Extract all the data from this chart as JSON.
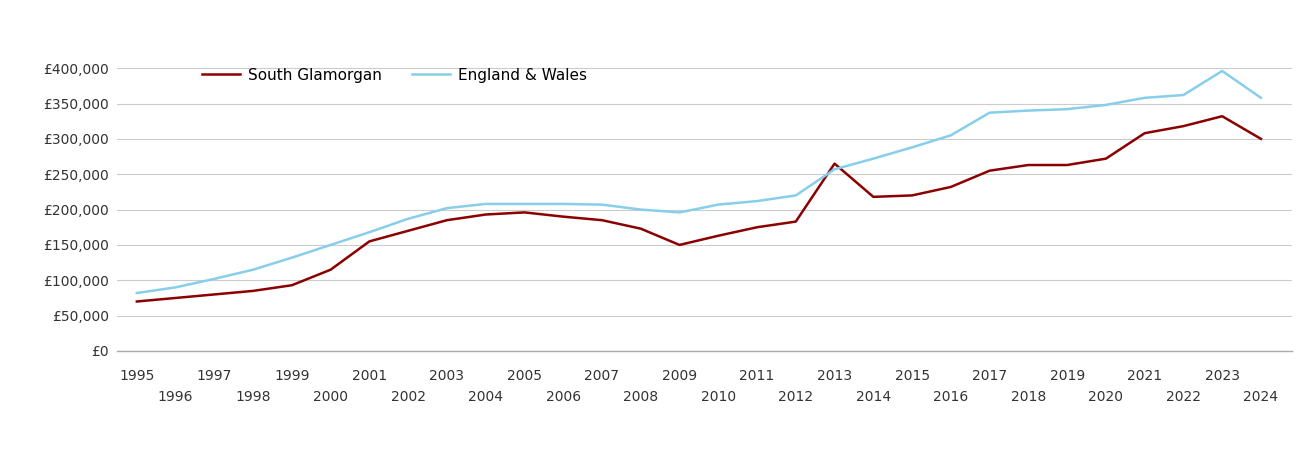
{
  "south_glamorgan_years": [
    1995,
    1996,
    1997,
    1998,
    1999,
    2000,
    2001,
    2002,
    2003,
    2004,
    2005,
    2006,
    2007,
    2008,
    2009,
    2010,
    2011,
    2012,
    2013,
    2014,
    2015,
    2016,
    2017,
    2018,
    2019,
    2020,
    2021,
    2022,
    2023,
    2024
  ],
  "south_glamorgan_values": [
    70000,
    75000,
    80000,
    85000,
    93000,
    115000,
    155000,
    170000,
    185000,
    193000,
    196000,
    190000,
    185000,
    173000,
    150000,
    163000,
    175000,
    183000,
    265000,
    218000,
    220000,
    232000,
    255000,
    263000,
    263000,
    272000,
    308000,
    318000,
    332000,
    300000
  ],
  "england_wales_years": [
    1995,
    1996,
    1997,
    1998,
    1999,
    2000,
    2001,
    2002,
    2003,
    2004,
    2005,
    2006,
    2007,
    2008,
    2009,
    2010,
    2011,
    2012,
    2013,
    2014,
    2015,
    2016,
    2017,
    2018,
    2019,
    2020,
    2021,
    2022,
    2023,
    2024
  ],
  "england_wales_values": [
    82000,
    90000,
    102000,
    115000,
    132000,
    150000,
    168000,
    187000,
    202000,
    208000,
    208000,
    208000,
    207000,
    200000,
    196000,
    207000,
    212000,
    220000,
    257000,
    272000,
    288000,
    305000,
    337000,
    340000,
    342000,
    348000,
    358000,
    362000,
    396000,
    358000
  ],
  "south_glamorgan_color": "#8B0000",
  "england_wales_color": "#87CEEB",
  "south_glamorgan_label": "South Glamorgan",
  "england_wales_label": "England & Wales",
  "ylim_min": 0,
  "ylim_max": 420000,
  "yticks": [
    0,
    50000,
    100000,
    150000,
    200000,
    250000,
    300000,
    350000,
    400000
  ],
  "ytick_labels": [
    "£0",
    "£50,000",
    "£100,000",
    "£150,000",
    "£200,000",
    "£250,000",
    "£300,000",
    "£350,000",
    "£400,000"
  ],
  "odd_years": [
    1995,
    1997,
    1999,
    2001,
    2003,
    2005,
    2007,
    2009,
    2011,
    2013,
    2015,
    2017,
    2019,
    2021,
    2023
  ],
  "even_years": [
    1996,
    1998,
    2000,
    2002,
    2004,
    2006,
    2008,
    2010,
    2012,
    2014,
    2016,
    2018,
    2020,
    2022,
    2024
  ],
  "line_width": 1.8,
  "background_color": "#ffffff",
  "grid_color": "#cccccc",
  "legend_fontsize": 11,
  "tick_fontsize": 10,
  "xlim_min": 1994.5,
  "xlim_max": 2024.8
}
